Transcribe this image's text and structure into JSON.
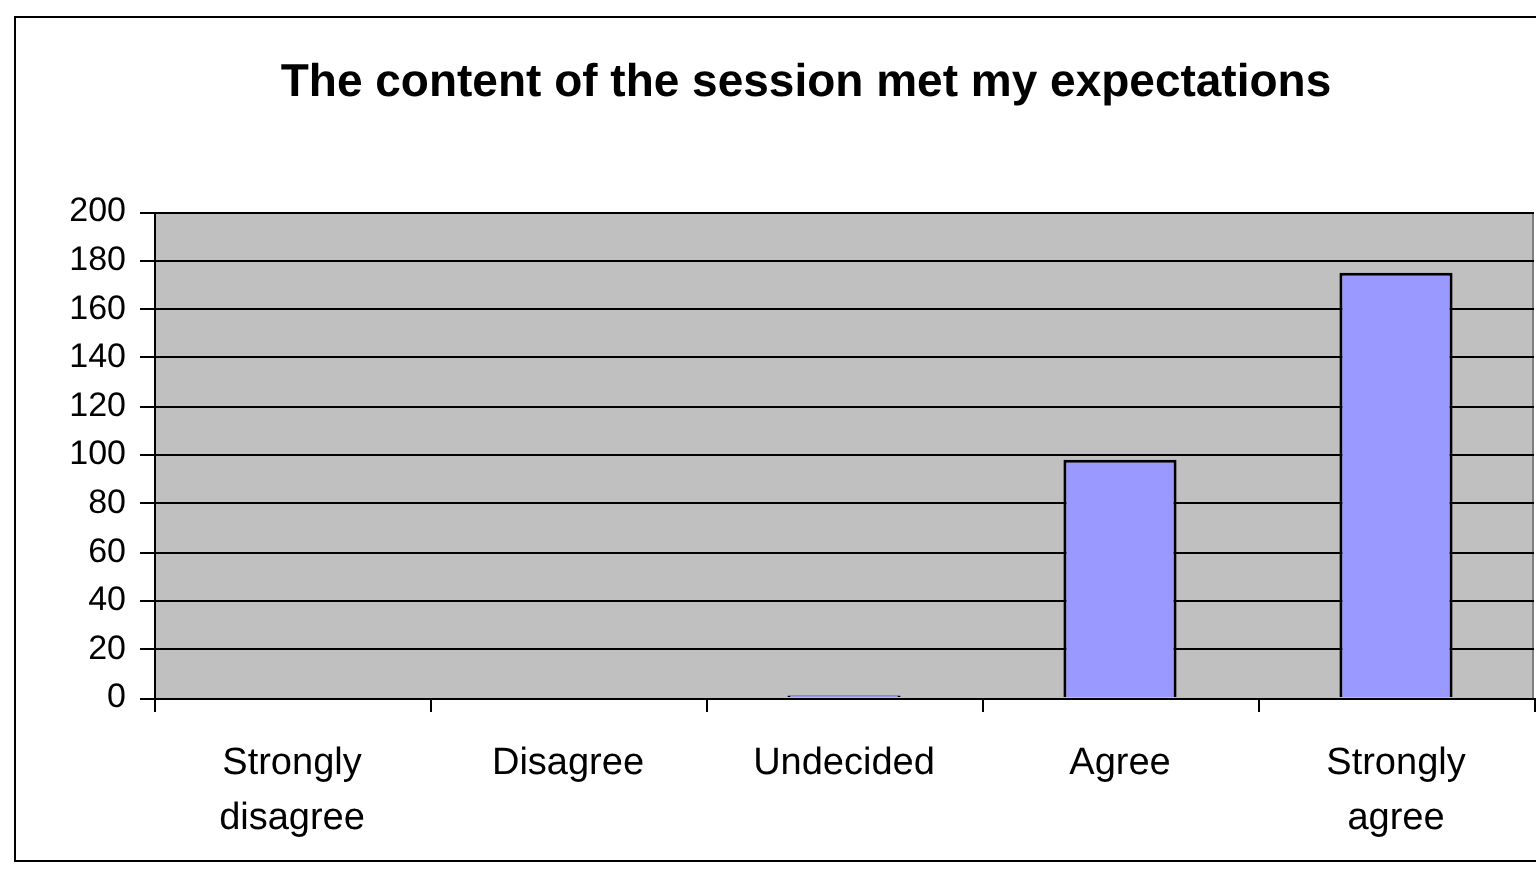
{
  "chart_data": {
    "type": "bar",
    "title": "The content of the session met my expectations",
    "categories": [
      "Strongly disagree",
      "Disagree",
      "Undecided",
      "Agree",
      "Strongly agree"
    ],
    "values": [
      0,
      0,
      1,
      98,
      175
    ],
    "color": "#9999ff",
    "ylim": [
      0,
      200
    ],
    "yticks": [
      0,
      20,
      40,
      60,
      80,
      100,
      120,
      140,
      160,
      180,
      200
    ],
    "grid": "y"
  }
}
